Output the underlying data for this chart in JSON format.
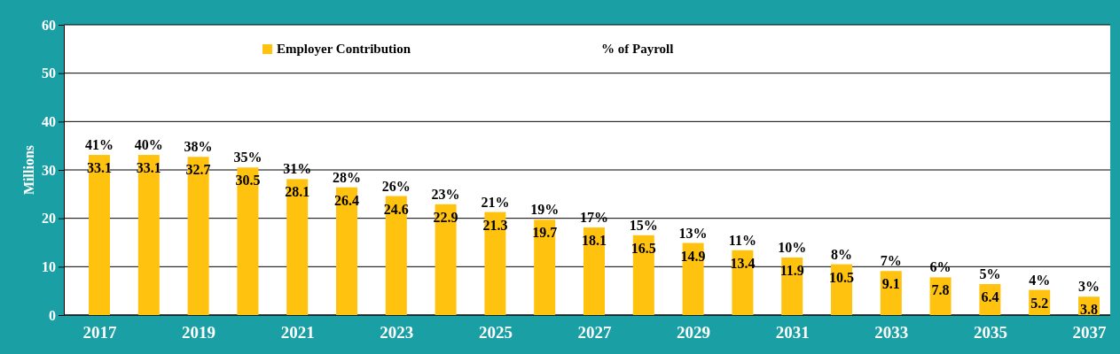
{
  "chart_data": {
    "type": "bar",
    "ylabel": "Millions",
    "categories": [
      "2017",
      null,
      "2019",
      null,
      "2021",
      null,
      "2023",
      null,
      "2025",
      null,
      "2027",
      null,
      "2029",
      null,
      "2031",
      null,
      "2033",
      null,
      "2035",
      null,
      "2037"
    ],
    "series": [
      {
        "name": "Employer Contribution",
        "color": "#ffc20e",
        "values": [
          33.1,
          33.1,
          32.7,
          30.5,
          28.1,
          26.4,
          24.6,
          22.9,
          21.3,
          19.7,
          18.1,
          16.5,
          14.9,
          13.4,
          11.9,
          10.5,
          9.1,
          7.8,
          6.4,
          5.2,
          3.8
        ]
      }
    ],
    "data_labels": true,
    "ylim": [
      0,
      60
    ],
    "yticks": [
      0,
      10,
      20,
      30,
      40,
      50,
      60
    ],
    "grid": "y",
    "legend": "top",
    "annotations": [
      "% of Payroll",
      {
        "text": "41%",
        "x": "2017",
        "y": 33.1
      },
      {
        "text": "40%",
        "y": 33.1
      },
      {
        "text": "38%",
        "x": "2019",
        "y": 32.7
      },
      {
        "text": "35%",
        "y": 30.5
      },
      {
        "text": "31%",
        "x": "2021",
        "y": 28.1
      },
      {
        "text": "28%",
        "y": 26.4
      },
      {
        "text": "26%",
        "x": "2023",
        "y": 24.6
      },
      {
        "text": "23%",
        "y": 22.9
      },
      {
        "text": "21%",
        "x": "2025",
        "y": 21.3
      },
      {
        "text": "19%",
        "y": 19.7
      },
      {
        "text": "17%",
        "x": "2027",
        "y": 18.1
      },
      {
        "text": "15%",
        "y": 16.5
      },
      {
        "text": "13%",
        "x": "2029",
        "y": 14.9
      },
      {
        "text": "11%",
        "y": 13.4
      },
      {
        "text": "10%",
        "x": "2031",
        "y": 11.9
      },
      {
        "text": "8%",
        "y": 10.5
      },
      {
        "text": "7%",
        "x": "2033",
        "y": 9.1
      },
      {
        "text": "6%",
        "y": 7.8
      },
      {
        "text": "5%",
        "x": "2035",
        "y": 6.4
      },
      {
        "text": "4%",
        "y": 5.2
      },
      {
        "text": "3%",
        "x": "2037",
        "y": 3.8
      }
    ]
  }
}
